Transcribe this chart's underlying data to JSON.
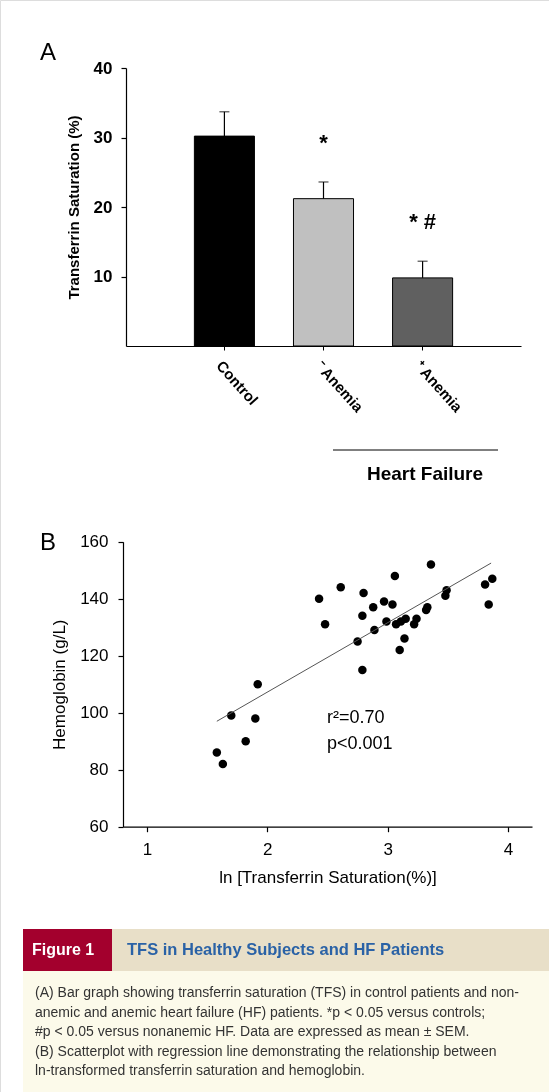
{
  "chart_data": [
    {
      "type": "bar",
      "title": "A",
      "ylabel": "Transferrin Saturation (%)",
      "categories": [
        "Control",
        "⁻ Anemia",
        "⁺ Anemia"
      ],
      "values": [
        30.2,
        21.2,
        9.8
      ],
      "colors": [
        "#000000",
        "#c0c0c0",
        "#606060"
      ],
      "errors": [
        3.5,
        2.4,
        2.4
      ],
      "ylim": [
        0,
        40
      ],
      "yticks": [
        10,
        20,
        30,
        40
      ],
      "annotations": [
        {
          "text": "*",
          "x": "⁻ Anemia",
          "y": 21.2
        },
        {
          "text": "* #",
          "x": "⁺ Anemia",
          "y": 9.8
        },
        "Heart Failure"
      ]
    },
    {
      "type": "scatter",
      "title": "B",
      "xlabel": "ln [Transferrin Saturation(%)]",
      "ylabel": "Hemoglobin (g/L)",
      "xlim": [
        0.8,
        4.2
      ],
      "xticks": [
        1,
        2,
        3,
        4
      ],
      "ylim": [
        60,
        160
      ],
      "yticks": [
        60,
        80,
        100,
        120,
        140,
        160
      ],
      "series": [
        {
          "type": "scatter",
          "color": "#000000",
          "marker": "circle",
          "x": [
            1.58,
            1.63,
            1.7,
            1.82,
            1.9,
            1.92,
            2.43,
            2.48,
            2.61,
            2.8,
            2.79,
            2.88,
            2.75,
            2.79,
            2.89,
            2.97,
            3.04,
            3.06,
            2.99,
            3.07,
            3.11,
            3.15,
            3.22,
            3.24,
            3.14,
            3.1,
            3.32,
            3.33,
            3.36,
            3.48,
            3.49,
            3.81,
            3.87,
            3.84
          ],
          "values": [
            86,
            82,
            99,
            90,
            98,
            110,
            140,
            131,
            144,
            142,
            134,
            137,
            125,
            115,
            129,
            139,
            138,
            148,
            132,
            131,
            132,
            133,
            131,
            133,
            126,
            122,
            136,
            137,
            152,
            141,
            143,
            145,
            147,
            138
          ]
        },
        {
          "type": "line",
          "color": "#555555",
          "x": [
            1.58,
            3.86
          ],
          "values": [
            97,
            152.5
          ]
        }
      ],
      "annotations": [
        "r²=0.70",
        "p<0.001"
      ]
    },
    {
      "type": "other",
      "subtitle": "Figure 1",
      "title": "TFS in Healthy Subjects and HF Patients",
      "annotations": [
        "(A) Bar graph showing transferrin saturation (TFS) in control patients and non-",
        "anemic and anemic heart failure (HF) patients. *p < 0.05 versus controls;",
        "#p < 0.05 versus nonanemic HF. Data are expressed as mean ± SEM.",
        "(B) Scatterplot with regression line demonstrating the relationship between",
        "ln-transformed transferrin saturation and hemoglobin."
      ]
    }
  ]
}
